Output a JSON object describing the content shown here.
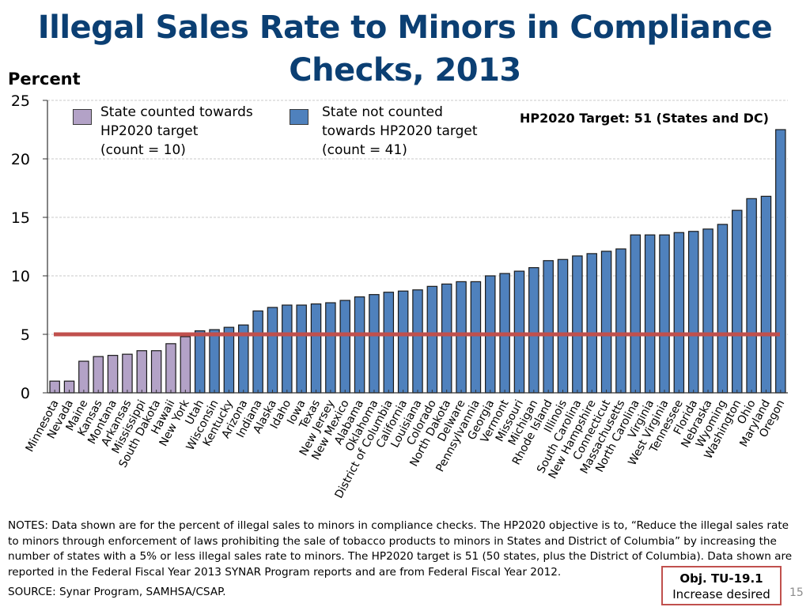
{
  "slide": {
    "title": "Illegal Sales Rate to Minors in Compliance Checks, 2013",
    "page_number": "15",
    "notes": "NOTES:  Data  shown are for the percent of illegal sales to minors in compliance checks.   The HP2020 objective is to, “Reduce the illegal sales rate to minors through enforcement of laws prohibiting the sale of tobacco products to minors in States and District of Columbia” by increasing the number of states with a 5% or less illegal sales rate to minors.  The HP2020 target is 51 (50 states, plus the District of Columbia). Data shown are reported in the Federal Fiscal Year 2013 SYNAR Program reports and are from Federal Fiscal Year 2012.",
    "source": "SOURCE: Synar Program, SAMHSA/CSAP.",
    "objective": {
      "title": "Obj. TU-19.1",
      "subtitle": "Increase desired"
    },
    "colors": {
      "title": "#0b3f73",
      "counted": "#b3a2c7",
      "not_counted": "#4f81bd",
      "target_line": "#c0504d",
      "objective_border": "#c0504d"
    }
  },
  "chart_data": {
    "type": "bar",
    "title": "Illegal Sales Rate to Minors in Compliance Checks, 2013",
    "xlabel": "",
    "ylabel": "Percent",
    "ylim": [
      0,
      25
    ],
    "yticks": [
      0,
      5,
      10,
      15,
      20,
      25
    ],
    "grid": true,
    "annotation": "HP2020 Target: 51 (States and DC)",
    "target_line": {
      "value": 5,
      "label": "HP2020 target threshold"
    },
    "legend_position": "top-left",
    "legend": [
      {
        "name": "State counted towards\nHP2020 target\n(count = 10)",
        "key": "counted"
      },
      {
        "name": "State not counted\ntowards HP2020 target\n(count = 41)",
        "key": "not_counted"
      }
    ],
    "categories": [
      "Minnesota",
      "Nevada",
      "Maine",
      "Kansas",
      "Montana",
      "Arkansas",
      "Mississippi",
      "South Dakota",
      "Hawaii",
      "New York",
      "Utah",
      "Wisconsin",
      "Kentucky",
      "Arizona",
      "Indiana",
      "Alaska",
      "Idaho",
      "Iowa",
      "Texas",
      "New Jersey",
      "New Mexico",
      "Alabama",
      "Oklahoma",
      "District of Columbia",
      "California",
      "Louisiana",
      "Colorado",
      "North Dakota",
      "Delware",
      "Pennsylvannia",
      "Georgia",
      "Vermont",
      "Missouri",
      "Michigan",
      "Rhode Island",
      "Illinois",
      "South Carolina",
      "New Hampshire",
      "Connecticut",
      "Massachusetts",
      "North Carolina",
      "Virginia",
      "West Virginia",
      "Tennessee",
      "Florida",
      "Nebraska",
      "Wyoming",
      "Washington",
      "Ohio",
      "Maryland",
      "Oregon"
    ],
    "values": [
      1.0,
      1.0,
      2.7,
      3.1,
      3.2,
      3.3,
      3.6,
      3.6,
      4.2,
      4.8,
      5.3,
      5.4,
      5.6,
      5.8,
      7.0,
      7.3,
      7.5,
      7.5,
      7.6,
      7.7,
      7.9,
      8.2,
      8.4,
      8.6,
      8.7,
      8.8,
      9.1,
      9.3,
      9.5,
      9.5,
      10.0,
      10.2,
      10.4,
      10.7,
      11.3,
      11.4,
      11.7,
      11.9,
      12.1,
      12.3,
      13.5,
      13.5,
      13.5,
      13.7,
      13.8,
      14.0,
      14.4,
      15.6,
      16.6,
      16.8,
      22.5
    ],
    "groups": [
      "counted",
      "counted",
      "counted",
      "counted",
      "counted",
      "counted",
      "counted",
      "counted",
      "counted",
      "counted",
      "not_counted",
      "not_counted",
      "not_counted",
      "not_counted",
      "not_counted",
      "not_counted",
      "not_counted",
      "not_counted",
      "not_counted",
      "not_counted",
      "not_counted",
      "not_counted",
      "not_counted",
      "not_counted",
      "not_counted",
      "not_counted",
      "not_counted",
      "not_counted",
      "not_counted",
      "not_counted",
      "not_counted",
      "not_counted",
      "not_counted",
      "not_counted",
      "not_counted",
      "not_counted",
      "not_counted",
      "not_counted",
      "not_counted",
      "not_counted",
      "not_counted",
      "not_counted",
      "not_counted",
      "not_counted",
      "not_counted",
      "not_counted",
      "not_counted",
      "not_counted",
      "not_counted",
      "not_counted",
      "not_counted"
    ]
  }
}
